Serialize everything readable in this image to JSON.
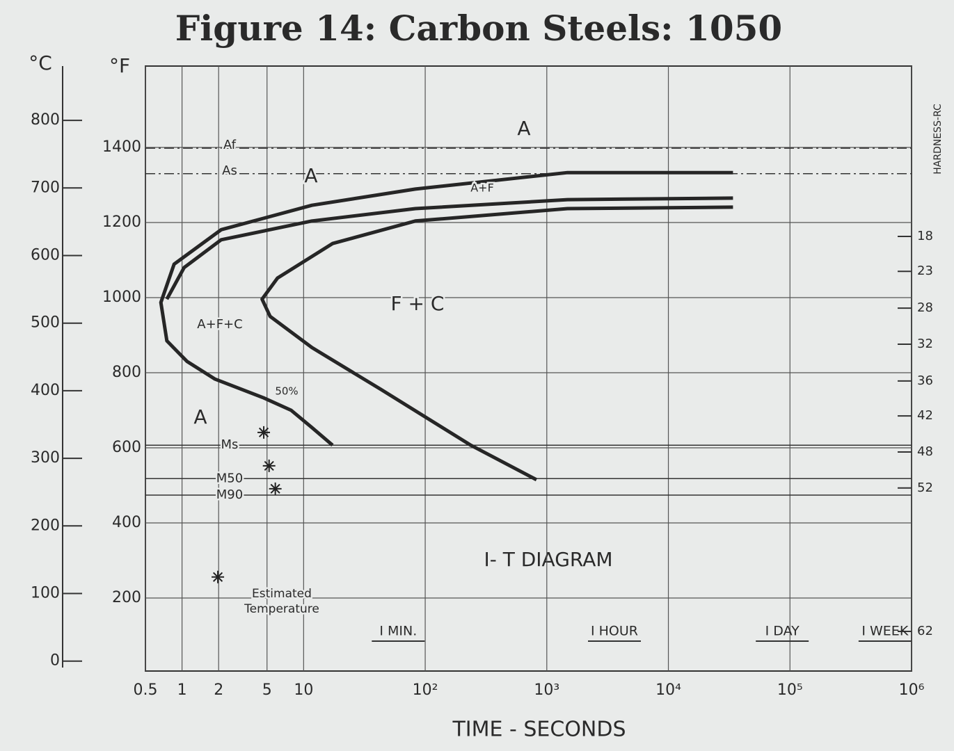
{
  "chart_data": {
    "type": "line",
    "title": "Figure 14: Carbon Steels: 1050",
    "subtitle": "I- T DIAGRAM",
    "x_label": "TIME - SECONDS",
    "y_label": "°F",
    "y2_label": "°C",
    "y3_label": "HARDNESS-RC",
    "x_scale": "log",
    "grid": true,
    "color": "#262626",
    "xlim": [
      0.5,
      1000000
    ],
    "xticks": [
      0.5,
      1,
      2,
      5,
      10,
      {
        "value": 100,
        "label": "10²"
      },
      {
        "value": 1000,
        "label": "10³"
      },
      {
        "value": 10000,
        "label": "10⁴"
      },
      {
        "value": 100000,
        "label": "10⁵"
      },
      {
        "value": 1000000,
        "label": "10⁶"
      }
    ],
    "ylim": [
      0,
      1600
    ],
    "yticks": [
      200,
      400,
      600,
      800,
      1000,
      1200,
      1400
    ],
    "y2lim": [
      -17.8,
      871.1
    ],
    "y2ticks": [
      0,
      100,
      200,
      300,
      400,
      500,
      600,
      700,
      800
    ],
    "hardness_ticks": [
      {
        "value": 1163,
        "label": "18"
      },
      {
        "value": 1070,
        "label": "23"
      },
      {
        "value": 972,
        "label": "28"
      },
      {
        "value": 876,
        "label": "32"
      },
      {
        "value": 778,
        "label": "36"
      },
      {
        "value": 685,
        "label": "42"
      },
      {
        "value": 589,
        "label": "48"
      },
      {
        "value": 493,
        "label": "52"
      },
      {
        "value": 111,
        "label": "62"
      }
    ],
    "series": [
      {
        "color": "#262626",
        "x": [
          34000,
          1480,
          83,
          11.7,
          2.1,
          0.86,
          0.67,
          0.75,
          1.1,
          1.87,
          4.7,
          7.9,
          11.7,
          17.3
        ],
        "values": [
          1333,
          1333,
          1289,
          1246,
          1181,
          1089,
          987,
          885,
          830,
          783,
          733,
          700,
          654,
          607
        ]
      },
      {
        "color": "#262626",
        "x": [
          34000,
          1480,
          83,
          11.7,
          2.1,
          1.04,
          0.75
        ],
        "values": [
          1265,
          1261,
          1237,
          1204,
          1154,
          1080,
          996
        ]
      },
      {
        "color": "#262626",
        "x": [
          34000,
          1480,
          83,
          17.3,
          6.1,
          4.55,
          5.3,
          11.7,
          43,
          237,
          823
        ],
        "values": [
          1241,
          1237,
          1204,
          1144,
          1052,
          996,
          950,
          867,
          756,
          607,
          515
        ]
      }
    ],
    "reference_lines": [
      {
        "label": "Af",
        "value": 1398
      },
      {
        "label": "As",
        "value": 1330
      },
      {
        "label": "Ms",
        "value": 607
      },
      {
        "label": "M50",
        "value": 518
      },
      {
        "label": "M90",
        "value": 474
      }
    ],
    "estimated_points": {
      "x": [
        4.7,
        5.2,
        5.85,
        1.97
      ],
      "values": [
        641,
        552,
        491,
        256
      ]
    },
    "time_marks": [
      {
        "value": 60,
        "label": "I MIN."
      },
      {
        "value": 3600,
        "label": "I HOUR"
      },
      {
        "value": 86400,
        "label": "I DAY"
      },
      {
        "value": 604800,
        "label": "I WEEK"
      }
    ],
    "annotations": [
      "A",
      "A",
      "A+F",
      "F + C",
      "A+F+C",
      "50%",
      "A",
      "Estimated",
      "Temperature"
    ]
  }
}
